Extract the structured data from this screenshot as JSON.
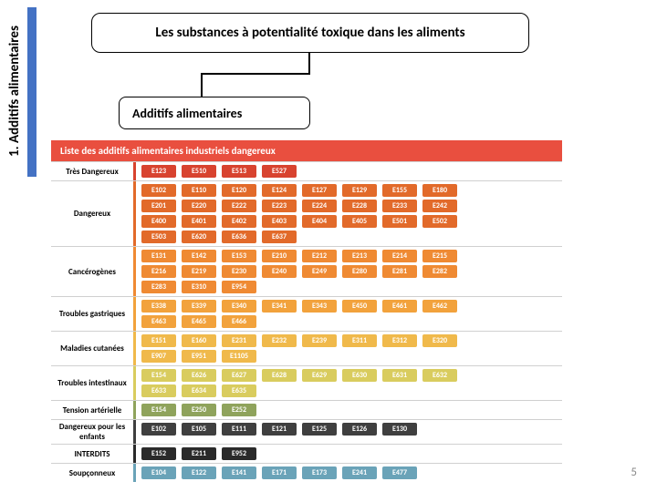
{
  "sidebar": {
    "label": "1. Additifs alimentaires",
    "bar_color": "#4472c4"
  },
  "title": "Les substances à potentialité toxique dans les aliments",
  "subtitle": "Additifs alimentaires",
  "banner": "Liste des additifs alimentaires industriels dangereux",
  "page_number": "5",
  "categories": [
    {
      "label": "Très Dangereux",
      "color": "#d8432f",
      "rows": [
        [
          "E123",
          "E510",
          "E513",
          "E527"
        ]
      ]
    },
    {
      "label": "Dangereux",
      "color": "#e26a2a",
      "rows": [
        [
          "E102",
          "E110",
          "E120",
          "E124",
          "E127",
          "E129",
          "E155",
          "E180"
        ],
        [
          "E201",
          "E220",
          "E222",
          "E223",
          "E224",
          "E228",
          "E233",
          "E242"
        ],
        [
          "E400",
          "E401",
          "E402",
          "E403",
          "E404",
          "E405",
          "E501",
          "E502"
        ],
        [
          "E503",
          "E620",
          "E636",
          "E637"
        ]
      ]
    },
    {
      "label": "Cancérogènes",
      "color": "#ef8a33",
      "rows": [
        [
          "E131",
          "E142",
          "E153",
          "E210",
          "E212",
          "E213",
          "E214",
          "E215"
        ],
        [
          "E216",
          "E219",
          "E230",
          "E240",
          "E249",
          "E280",
          "E281",
          "E282"
        ],
        [
          "E283",
          "E310",
          "E954"
        ]
      ]
    },
    {
      "label": "Troubles gastriques",
      "color": "#f2a23c",
      "rows": [
        [
          "E338",
          "E339",
          "E340",
          "E341",
          "E343",
          "E450",
          "E461",
          "E462"
        ],
        [
          "E463",
          "E465",
          "E466"
        ]
      ]
    },
    {
      "label": "Maladies cutanées",
      "color": "#f0b94b",
      "rows": [
        [
          "E151",
          "E160",
          "E231",
          "E232",
          "E239",
          "E311",
          "E312",
          "E320"
        ],
        [
          "E907",
          "E951",
          "E1105"
        ]
      ]
    },
    {
      "label": "Troubles intestinaux",
      "color": "#d9cc5e",
      "rows": [
        [
          "E154",
          "E626",
          "E627",
          "E628",
          "E629",
          "E630",
          "E631",
          "E632"
        ],
        [
          "E633",
          "E634",
          "E635"
        ]
      ]
    },
    {
      "label": "Tension artérielle",
      "color": "#8fa35c",
      "rows": [
        [
          "E154",
          "E250",
          "E252"
        ]
      ]
    },
    {
      "label": "Dangereux pour les enfants",
      "color": "#3f3f3f",
      "rows": [
        [
          "E102",
          "E105",
          "E111",
          "E121",
          "E125",
          "E126",
          "E130"
        ]
      ]
    },
    {
      "label": "INTERDITS",
      "color": "#2a2a2a",
      "rows": [
        [
          "E152",
          "E211",
          "E952"
        ]
      ]
    },
    {
      "label": "Soupçonneux",
      "color": "#6aa3b8",
      "rows": [
        [
          "E104",
          "E122",
          "E141",
          "E171",
          "E173",
          "E241",
          "E477"
        ]
      ]
    }
  ]
}
